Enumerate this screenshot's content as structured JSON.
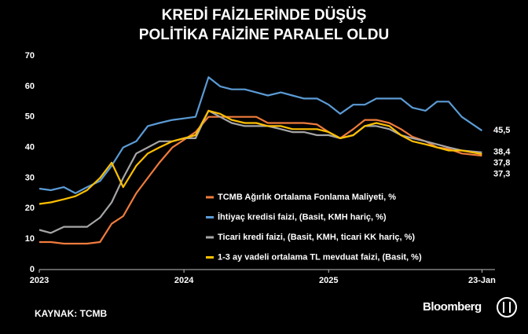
{
  "chart_data": {
    "type": "line",
    "title": [
      "KREDİ FAİZLERİNDE DÜŞÜŞ",
      "POLİTİKA FAİZİNE PARALEL OLDU"
    ],
    "source": "KAYNAK: TCMB",
    "brand": "Bloomberg",
    "x": [
      2023.0,
      2023.08,
      2023.17,
      2023.25,
      2023.33,
      2023.42,
      2023.5,
      2023.58,
      2023.67,
      2023.75,
      2023.83,
      2023.92,
      2024.0,
      2024.08,
      2024.17,
      2024.25,
      2024.33,
      2024.42,
      2024.5,
      2024.58,
      2024.67,
      2024.75,
      2024.83,
      2024.92,
      2025.0,
      2025.08,
      2025.17,
      2025.25,
      2025.33,
      2025.42,
      2025.5,
      2025.58,
      2025.67,
      2025.75,
      2025.83,
      2025.92,
      2026.06
    ],
    "xlim": [
      2023,
      2026.15
    ],
    "xticks": [
      2023,
      2024,
      2025,
      {
        "value": 2026.06,
        "label": "23-Jan"
      }
    ],
    "ylim": [
      0,
      70
    ],
    "yticks": [
      0,
      10,
      20,
      30,
      40,
      50,
      60,
      70
    ],
    "grid": false,
    "legend": "center",
    "series": [
      {
        "name": "TCMB Ağırlık Ortalama Fonlama Maliyeti, %",
        "color": "#f07c3c",
        "end_label": "37,3",
        "values": [
          9,
          9,
          8.5,
          8.5,
          8.5,
          9,
          15,
          17.5,
          25,
          30,
          35,
          40,
          42.5,
          45,
          50,
          50,
          50,
          50,
          50,
          48,
          48,
          48,
          48,
          47.5,
          45,
          43,
          46,
          49,
          49,
          48,
          46,
          43.5,
          42,
          40,
          39.5,
          38,
          37.3
        ]
      },
      {
        "name": "İhtiyaç kredisi faizi, (Basit, KMH hariç, %)",
        "color": "#5b9bd5",
        "end_label": "45,5",
        "values": [
          26.5,
          26,
          27,
          25,
          27,
          29,
          34,
          40,
          42,
          47,
          48,
          49,
          49.5,
          50,
          63,
          60,
          59,
          59,
          58,
          57,
          58,
          57,
          56,
          56,
          54,
          51,
          54,
          54,
          56,
          56,
          56,
          53,
          52,
          55,
          55,
          50,
          45.5
        ]
      },
      {
        "name": "Ticari kredi faizi, (Basit, KMH, ticari KK hariç, %)",
        "color": "#a6a6a6",
        "end_label": "38,4",
        "values": [
          13,
          12,
          14,
          14,
          14,
          17,
          22,
          30,
          38,
          40,
          42,
          42,
          43,
          43,
          52,
          50,
          48,
          47,
          47,
          47,
          46,
          45,
          45,
          44,
          44,
          43,
          44,
          47,
          47,
          46,
          44,
          43,
          42,
          41,
          40,
          39,
          38.4
        ]
      },
      {
        "name": "1-3 ay vadeli ortalama TL mevduat faizi, (Basit, %)",
        "color": "#ffc000",
        "end_label": "37,8",
        "values": [
          21.5,
          22,
          23,
          24,
          26,
          30,
          35,
          27,
          34,
          38,
          40,
          42,
          43,
          44,
          52,
          51,
          49,
          48,
          48,
          47,
          47,
          46,
          46,
          46,
          45,
          43,
          44,
          47,
          48,
          47,
          44,
          42,
          41,
          40,
          39,
          39,
          37.8
        ]
      }
    ]
  }
}
